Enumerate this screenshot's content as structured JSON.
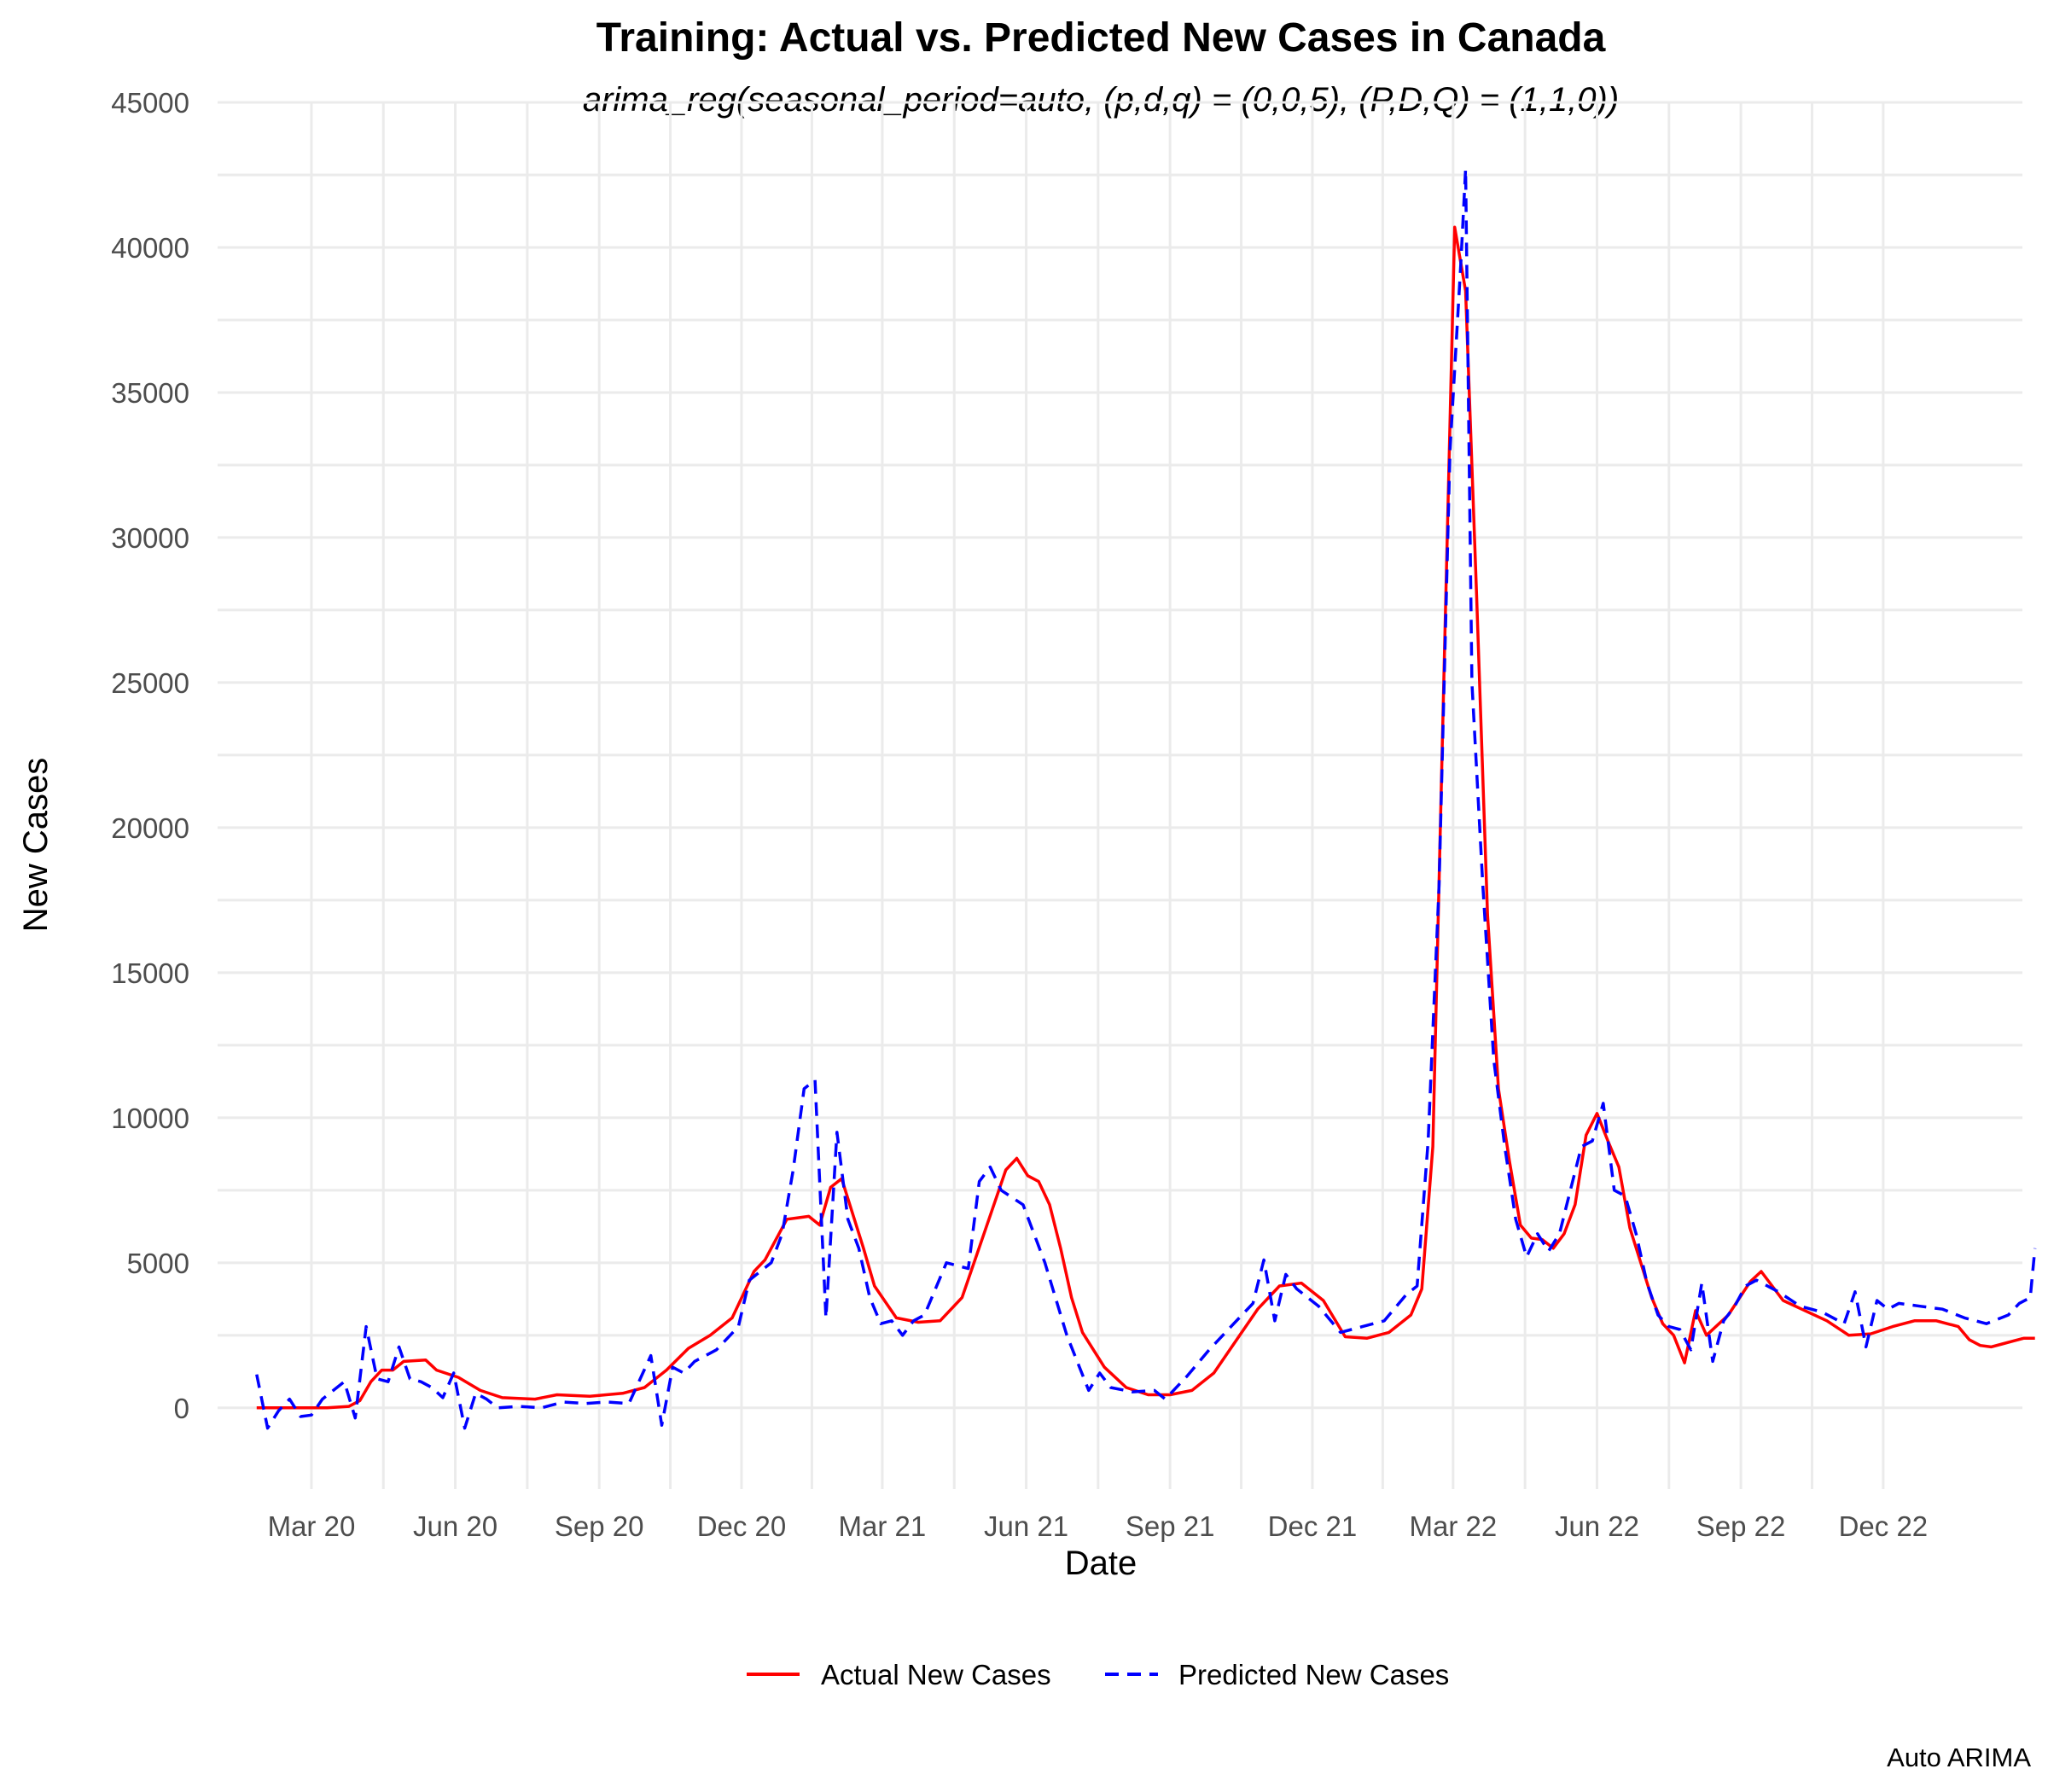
{
  "chart_data": {
    "type": "line",
    "title": "Training: Actual vs. Predicted New Cases in Canada",
    "subtitle": "arima_reg(seasonal_period=auto, (p,d,q) = (0,0,5), (P,D,Q) = (1,1,0))",
    "xlabel": "Date",
    "ylabel": "New Cases",
    "caption": "Auto ARIMA",
    "ylim": [
      -2800,
      45000
    ],
    "xlim": [
      "2020-01-01",
      "2023-02-28"
    ],
    "y_ticks": [
      0,
      5000,
      10000,
      15000,
      20000,
      25000,
      30000,
      35000,
      40000,
      45000
    ],
    "x_ticks": [
      {
        "date": "2020-03-01",
        "label": "Mar 20"
      },
      {
        "date": "2020-06-01",
        "label": "Jun 20"
      },
      {
        "date": "2020-09-01",
        "label": "Sep 20"
      },
      {
        "date": "2020-12-01",
        "label": "Dec 20"
      },
      {
        "date": "2021-03-01",
        "label": "Mar 21"
      },
      {
        "date": "2021-06-01",
        "label": "Jun 21"
      },
      {
        "date": "2021-09-01",
        "label": "Sep 21"
      },
      {
        "date": "2021-12-01",
        "label": "Dec 21"
      },
      {
        "date": "2022-03-01",
        "label": "Mar 22"
      },
      {
        "date": "2022-06-01",
        "label": "Jun 22"
      },
      {
        "date": "2022-09-01",
        "label": "Sep 22"
      },
      {
        "date": "2022-12-01",
        "label": "Dec 22"
      }
    ],
    "grid": true,
    "legend_position": "bottom",
    "series": [
      {
        "name": "Actual New Cases",
        "color": "#FF0000",
        "dash": "solid",
        "points": [
          [
            "2020-01-26",
            0
          ],
          [
            "2020-02-10",
            0
          ],
          [
            "2020-02-25",
            0
          ],
          [
            "2020-03-11",
            0
          ],
          [
            "2020-03-25",
            50
          ],
          [
            "2020-04-01",
            250
          ],
          [
            "2020-04-08",
            900
          ],
          [
            "2020-04-15",
            1300
          ],
          [
            "2020-04-22",
            1300
          ],
          [
            "2020-04-29",
            1600
          ],
          [
            "2020-05-13",
            1650
          ],
          [
            "2020-05-20",
            1300
          ],
          [
            "2020-06-03",
            1050
          ],
          [
            "2020-06-17",
            600
          ],
          [
            "2020-07-01",
            350
          ],
          [
            "2020-07-22",
            300
          ],
          [
            "2020-08-05",
            450
          ],
          [
            "2020-08-26",
            400
          ],
          [
            "2020-09-16",
            500
          ],
          [
            "2020-09-30",
            700
          ],
          [
            "2020-10-14",
            1300
          ],
          [
            "2020-10-28",
            2050
          ],
          [
            "2020-11-11",
            2500
          ],
          [
            "2020-11-25",
            3100
          ],
          [
            "2020-12-02",
            3900
          ],
          [
            "2020-12-09",
            4700
          ],
          [
            "2020-12-16",
            5100
          ],
          [
            "2020-12-23",
            5800
          ],
          [
            "2020-12-30",
            6500
          ],
          [
            "2021-01-06",
            6550
          ],
          [
            "2021-01-13",
            6600
          ],
          [
            "2021-01-20",
            6300
          ],
          [
            "2021-01-27",
            7600
          ],
          [
            "2021-02-03",
            7900
          ],
          [
            "2021-02-10",
            6700
          ],
          [
            "2021-02-17",
            5500
          ],
          [
            "2021-02-24",
            4200
          ],
          [
            "2021-03-10",
            3100
          ],
          [
            "2021-03-24",
            2950
          ],
          [
            "2021-04-07",
            3000
          ],
          [
            "2021-04-21",
            3800
          ],
          [
            "2021-05-05",
            6000
          ],
          [
            "2021-05-19",
            8200
          ],
          [
            "2021-05-26",
            8600
          ],
          [
            "2021-06-02",
            8000
          ],
          [
            "2021-06-09",
            7800
          ],
          [
            "2021-06-16",
            7000
          ],
          [
            "2021-06-23",
            5500
          ],
          [
            "2021-06-30",
            3800
          ],
          [
            "2021-07-07",
            2600
          ],
          [
            "2021-07-21",
            1400
          ],
          [
            "2021-08-04",
            700
          ],
          [
            "2021-08-18",
            450
          ],
          [
            "2021-09-01",
            450
          ],
          [
            "2021-09-15",
            600
          ],
          [
            "2021-09-29",
            1200
          ],
          [
            "2021-10-13",
            2300
          ],
          [
            "2021-10-27",
            3400
          ],
          [
            "2021-11-10",
            4200
          ],
          [
            "2021-11-24",
            4300
          ],
          [
            "2021-12-08",
            3700
          ],
          [
            "2021-12-22",
            2450
          ],
          [
            "2022-01-05",
            2400
          ],
          [
            "2022-01-19",
            2600
          ],
          [
            "2022-02-02",
            3200
          ],
          [
            "2022-02-09",
            4100
          ],
          [
            "2022-02-16",
            9000
          ],
          [
            "2022-02-23",
            25000
          ],
          [
            "2022-03-02",
            40700
          ],
          [
            "2022-03-09",
            38500
          ],
          [
            "2022-03-16",
            28000
          ],
          [
            "2022-03-23",
            17000
          ],
          [
            "2022-03-30",
            11000
          ],
          [
            "2022-04-06",
            8500
          ],
          [
            "2022-04-13",
            6300
          ],
          [
            "2022-04-20",
            5850
          ],
          [
            "2022-04-27",
            5800
          ],
          [
            "2022-05-04",
            5500
          ],
          [
            "2022-05-11",
            6000
          ],
          [
            "2022-05-18",
            7000
          ],
          [
            "2022-05-25",
            9400
          ],
          [
            "2022-06-01",
            10150
          ],
          [
            "2022-06-08",
            9200
          ],
          [
            "2022-06-15",
            8300
          ],
          [
            "2022-06-22",
            6200
          ],
          [
            "2022-07-06",
            3800
          ],
          [
            "2022-07-13",
            2900
          ],
          [
            "2022-07-20",
            2500
          ],
          [
            "2022-07-27",
            1550
          ],
          [
            "2022-08-03",
            3350
          ],
          [
            "2022-08-10",
            2500
          ],
          [
            "2022-08-24",
            3200
          ],
          [
            "2022-09-07",
            4350
          ],
          [
            "2022-09-14",
            4700
          ],
          [
            "2022-09-28",
            3700
          ],
          [
            "2022-10-12",
            3350
          ],
          [
            "2022-10-26",
            3000
          ],
          [
            "2022-11-09",
            2500
          ],
          [
            "2022-11-23",
            2550
          ],
          [
            "2022-12-07",
            2800
          ],
          [
            "2022-12-21",
            3000
          ],
          [
            "2023-01-04",
            3000
          ],
          [
            "2023-01-18",
            2800
          ],
          [
            "2023-01-25",
            2350
          ],
          [
            "2023-02-01",
            2150
          ],
          [
            "2023-02-08",
            2100
          ],
          [
            "2023-02-15",
            2200
          ],
          [
            "2023-02-22",
            2300
          ],
          [
            "2023-03-01",
            2400
          ],
          [
            "2023-03-08",
            2400
          ]
        ]
      },
      {
        "name": "Predicted New Cases",
        "color": "#0000FF",
        "dash": "dashed",
        "points": [
          [
            "2020-01-26",
            1150
          ],
          [
            "2020-02-02",
            -700
          ],
          [
            "2020-02-09",
            -100
          ],
          [
            "2020-02-16",
            300
          ],
          [
            "2020-02-23",
            -300
          ],
          [
            "2020-03-01",
            -250
          ],
          [
            "2020-03-08",
            300
          ],
          [
            "2020-03-15",
            600
          ],
          [
            "2020-03-22",
            900
          ],
          [
            "2020-03-29",
            -350
          ],
          [
            "2020-04-05",
            2800
          ],
          [
            "2020-04-12",
            1000
          ],
          [
            "2020-04-19",
            900
          ],
          [
            "2020-04-26",
            2100
          ],
          [
            "2020-05-03",
            1000
          ],
          [
            "2020-05-10",
            900
          ],
          [
            "2020-05-17",
            700
          ],
          [
            "2020-05-24",
            350
          ],
          [
            "2020-05-31",
            1200
          ],
          [
            "2020-06-07",
            -700
          ],
          [
            "2020-06-14",
            500
          ],
          [
            "2020-06-21",
            300
          ],
          [
            "2020-06-28",
            0
          ],
          [
            "2020-07-12",
            50
          ],
          [
            "2020-07-26",
            0
          ],
          [
            "2020-08-09",
            200
          ],
          [
            "2020-08-23",
            150
          ],
          [
            "2020-09-06",
            200
          ],
          [
            "2020-09-20",
            150
          ],
          [
            "2020-10-04",
            1800
          ],
          [
            "2020-10-11",
            -600
          ],
          [
            "2020-10-18",
            1400
          ],
          [
            "2020-10-25",
            1200
          ],
          [
            "2020-11-01",
            1600
          ],
          [
            "2020-11-15",
            2000
          ],
          [
            "2020-11-29",
            2800
          ],
          [
            "2020-12-06",
            4400
          ],
          [
            "2020-12-20",
            5000
          ],
          [
            "2020-12-27",
            6000
          ],
          [
            "2021-01-03",
            8200
          ],
          [
            "2021-01-10",
            11000
          ],
          [
            "2021-01-17",
            11300
          ],
          [
            "2021-01-24",
            3100
          ],
          [
            "2021-01-31",
            9500
          ],
          [
            "2021-02-07",
            6500
          ],
          [
            "2021-02-14",
            5500
          ],
          [
            "2021-02-21",
            3800
          ],
          [
            "2021-02-28",
            2900
          ],
          [
            "2021-03-07",
            3000
          ],
          [
            "2021-03-14",
            2500
          ],
          [
            "2021-03-21",
            3000
          ],
          [
            "2021-03-28",
            3200
          ],
          [
            "2021-04-11",
            5000
          ],
          [
            "2021-04-25",
            4800
          ],
          [
            "2021-05-02",
            7800
          ],
          [
            "2021-05-09",
            8300
          ],
          [
            "2021-05-16",
            7500
          ],
          [
            "2021-05-30",
            7000
          ],
          [
            "2021-06-13",
            5000
          ],
          [
            "2021-06-27",
            2500
          ],
          [
            "2021-07-11",
            600
          ],
          [
            "2021-07-18",
            1200
          ],
          [
            "2021-07-25",
            700
          ],
          [
            "2021-08-08",
            550
          ],
          [
            "2021-08-22",
            600
          ],
          [
            "2021-08-29",
            300
          ],
          [
            "2021-09-12",
            1100
          ],
          [
            "2021-09-26",
            2000
          ],
          [
            "2021-10-10",
            2800
          ],
          [
            "2021-10-24",
            3600
          ],
          [
            "2021-10-31",
            5100
          ],
          [
            "2021-11-07",
            3000
          ],
          [
            "2021-11-14",
            4600
          ],
          [
            "2021-11-21",
            4100
          ],
          [
            "2021-12-05",
            3500
          ],
          [
            "2021-12-19",
            2600
          ],
          [
            "2022-01-02",
            2800
          ],
          [
            "2022-01-16",
            3000
          ],
          [
            "2022-01-30",
            3900
          ],
          [
            "2022-02-06",
            4200
          ],
          [
            "2022-02-13",
            9200
          ],
          [
            "2022-02-20",
            18000
          ],
          [
            "2022-02-27",
            33000
          ],
          [
            "2022-03-06",
            39500
          ],
          [
            "2022-03-09",
            42700
          ],
          [
            "2022-03-13",
            25000
          ],
          [
            "2022-03-20",
            18000
          ],
          [
            "2022-03-27",
            12000
          ],
          [
            "2022-04-03",
            9000
          ],
          [
            "2022-04-10",
            6500
          ],
          [
            "2022-04-17",
            5200
          ],
          [
            "2022-04-24",
            6000
          ],
          [
            "2022-05-01",
            5400
          ],
          [
            "2022-05-08",
            6000
          ],
          [
            "2022-05-15",
            7500
          ],
          [
            "2022-05-22",
            9000
          ],
          [
            "2022-05-29",
            9200
          ],
          [
            "2022-06-05",
            10500
          ],
          [
            "2022-06-12",
            7500
          ],
          [
            "2022-06-19",
            7300
          ],
          [
            "2022-06-26",
            6000
          ],
          [
            "2022-07-03",
            4300
          ],
          [
            "2022-07-10",
            3200
          ],
          [
            "2022-07-17",
            2800
          ],
          [
            "2022-07-24",
            2700
          ],
          [
            "2022-07-31",
            2000
          ],
          [
            "2022-08-07",
            4300
          ],
          [
            "2022-08-14",
            1600
          ],
          [
            "2022-08-21",
            3000
          ],
          [
            "2022-08-28",
            3500
          ],
          [
            "2022-09-04",
            4200
          ],
          [
            "2022-09-11",
            4400
          ],
          [
            "2022-09-25",
            4000
          ],
          [
            "2022-10-09",
            3500
          ],
          [
            "2022-10-23",
            3300
          ],
          [
            "2022-11-06",
            2900
          ],
          [
            "2022-11-13",
            4000
          ],
          [
            "2022-11-20",
            2100
          ],
          [
            "2022-11-27",
            3700
          ],
          [
            "2022-12-04",
            3400
          ],
          [
            "2022-12-11",
            3600
          ],
          [
            "2022-12-25",
            3500
          ],
          [
            "2023-01-08",
            3400
          ],
          [
            "2023-01-22",
            3100
          ],
          [
            "2023-02-05",
            2900
          ],
          [
            "2023-02-19",
            3200
          ],
          [
            "2023-02-26",
            3600
          ],
          [
            "2023-03-05",
            3800
          ],
          [
            "2023-03-08",
            5500
          ]
        ]
      }
    ]
  }
}
